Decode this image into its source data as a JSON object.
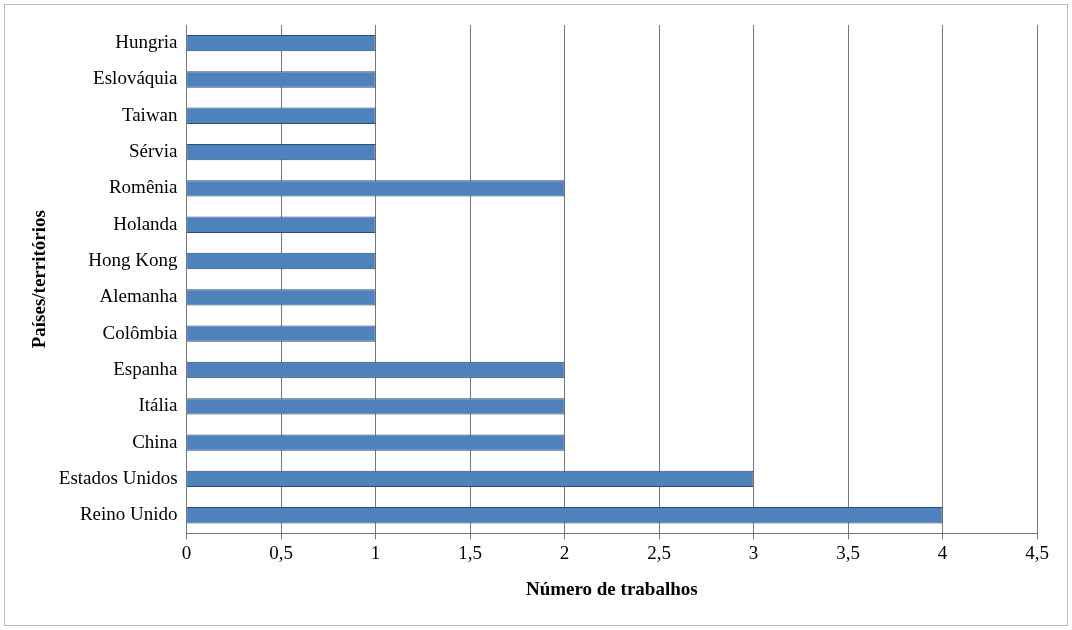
{
  "chart_data": {
    "type": "bar",
    "orientation": "horizontal",
    "xlabel": "Número de trabalhos",
    "ylabel": "Países/territórios",
    "categories": [
      "Hungria",
      "Eslováquia",
      "Taiwan",
      "Sérvia",
      "Romênia",
      "Holanda",
      "Hong Kong",
      "Alemanha",
      "Colômbia",
      "Espanha",
      "Itália",
      "China",
      "Estados Unidos",
      "Reino Unido"
    ],
    "values": [
      1,
      1,
      1,
      1,
      2,
      1,
      1,
      1,
      1,
      2,
      2,
      2,
      3,
      4
    ],
    "color": "#4f81bd",
    "xlim": [
      0,
      4.5
    ],
    "xticks": [
      0,
      {
        "value": 0.5,
        "label": "0,5"
      },
      1,
      {
        "value": 1.5,
        "label": "1,5"
      },
      2,
      {
        "value": 2.5,
        "label": "2,5"
      },
      3,
      {
        "value": 3.5,
        "label": "3,5"
      },
      4,
      {
        "value": 4.5,
        "label": "4,5"
      }
    ],
    "grid": "x"
  }
}
